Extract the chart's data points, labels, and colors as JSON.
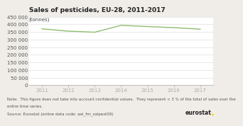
{
  "title": "Sales of pesticides, EU-28, 2011-2017",
  "ylabel": "(tonnes)",
  "x_values": [
    2011,
    2012,
    2013,
    2014,
    2015,
    2016,
    2017
  ],
  "y_values": [
    370000,
    355000,
    348000,
    393000,
    385000,
    378000,
    368000
  ],
  "line_color": "#8fbc6e",
  "ylim": [
    0,
    450000
  ],
  "yticks": [
    0,
    50000,
    100000,
    150000,
    200000,
    250000,
    300000,
    350000,
    400000,
    450000
  ],
  "background_color": "#f0ede8",
  "plot_bg_color": "#ffffff",
  "note_line1": "Note:  This figure does not take into account confidential values.  They represent < 3 % of the total of sales over the",
  "note_line2": "entire time series.",
  "note_line3": "Source: Eurostat (online data code: aei_fm_salpest09)",
  "eurostat_label": "eurostat",
  "title_fontsize": 6.5,
  "ylabel_fontsize": 5.0,
  "tick_fontsize": 5.0,
  "note_fontsize": 4.0,
  "eurostat_fontsize": 5.5,
  "grid_color": "#d8d8d8",
  "axis_color": "#aaaaaa",
  "text_color": "#555555"
}
